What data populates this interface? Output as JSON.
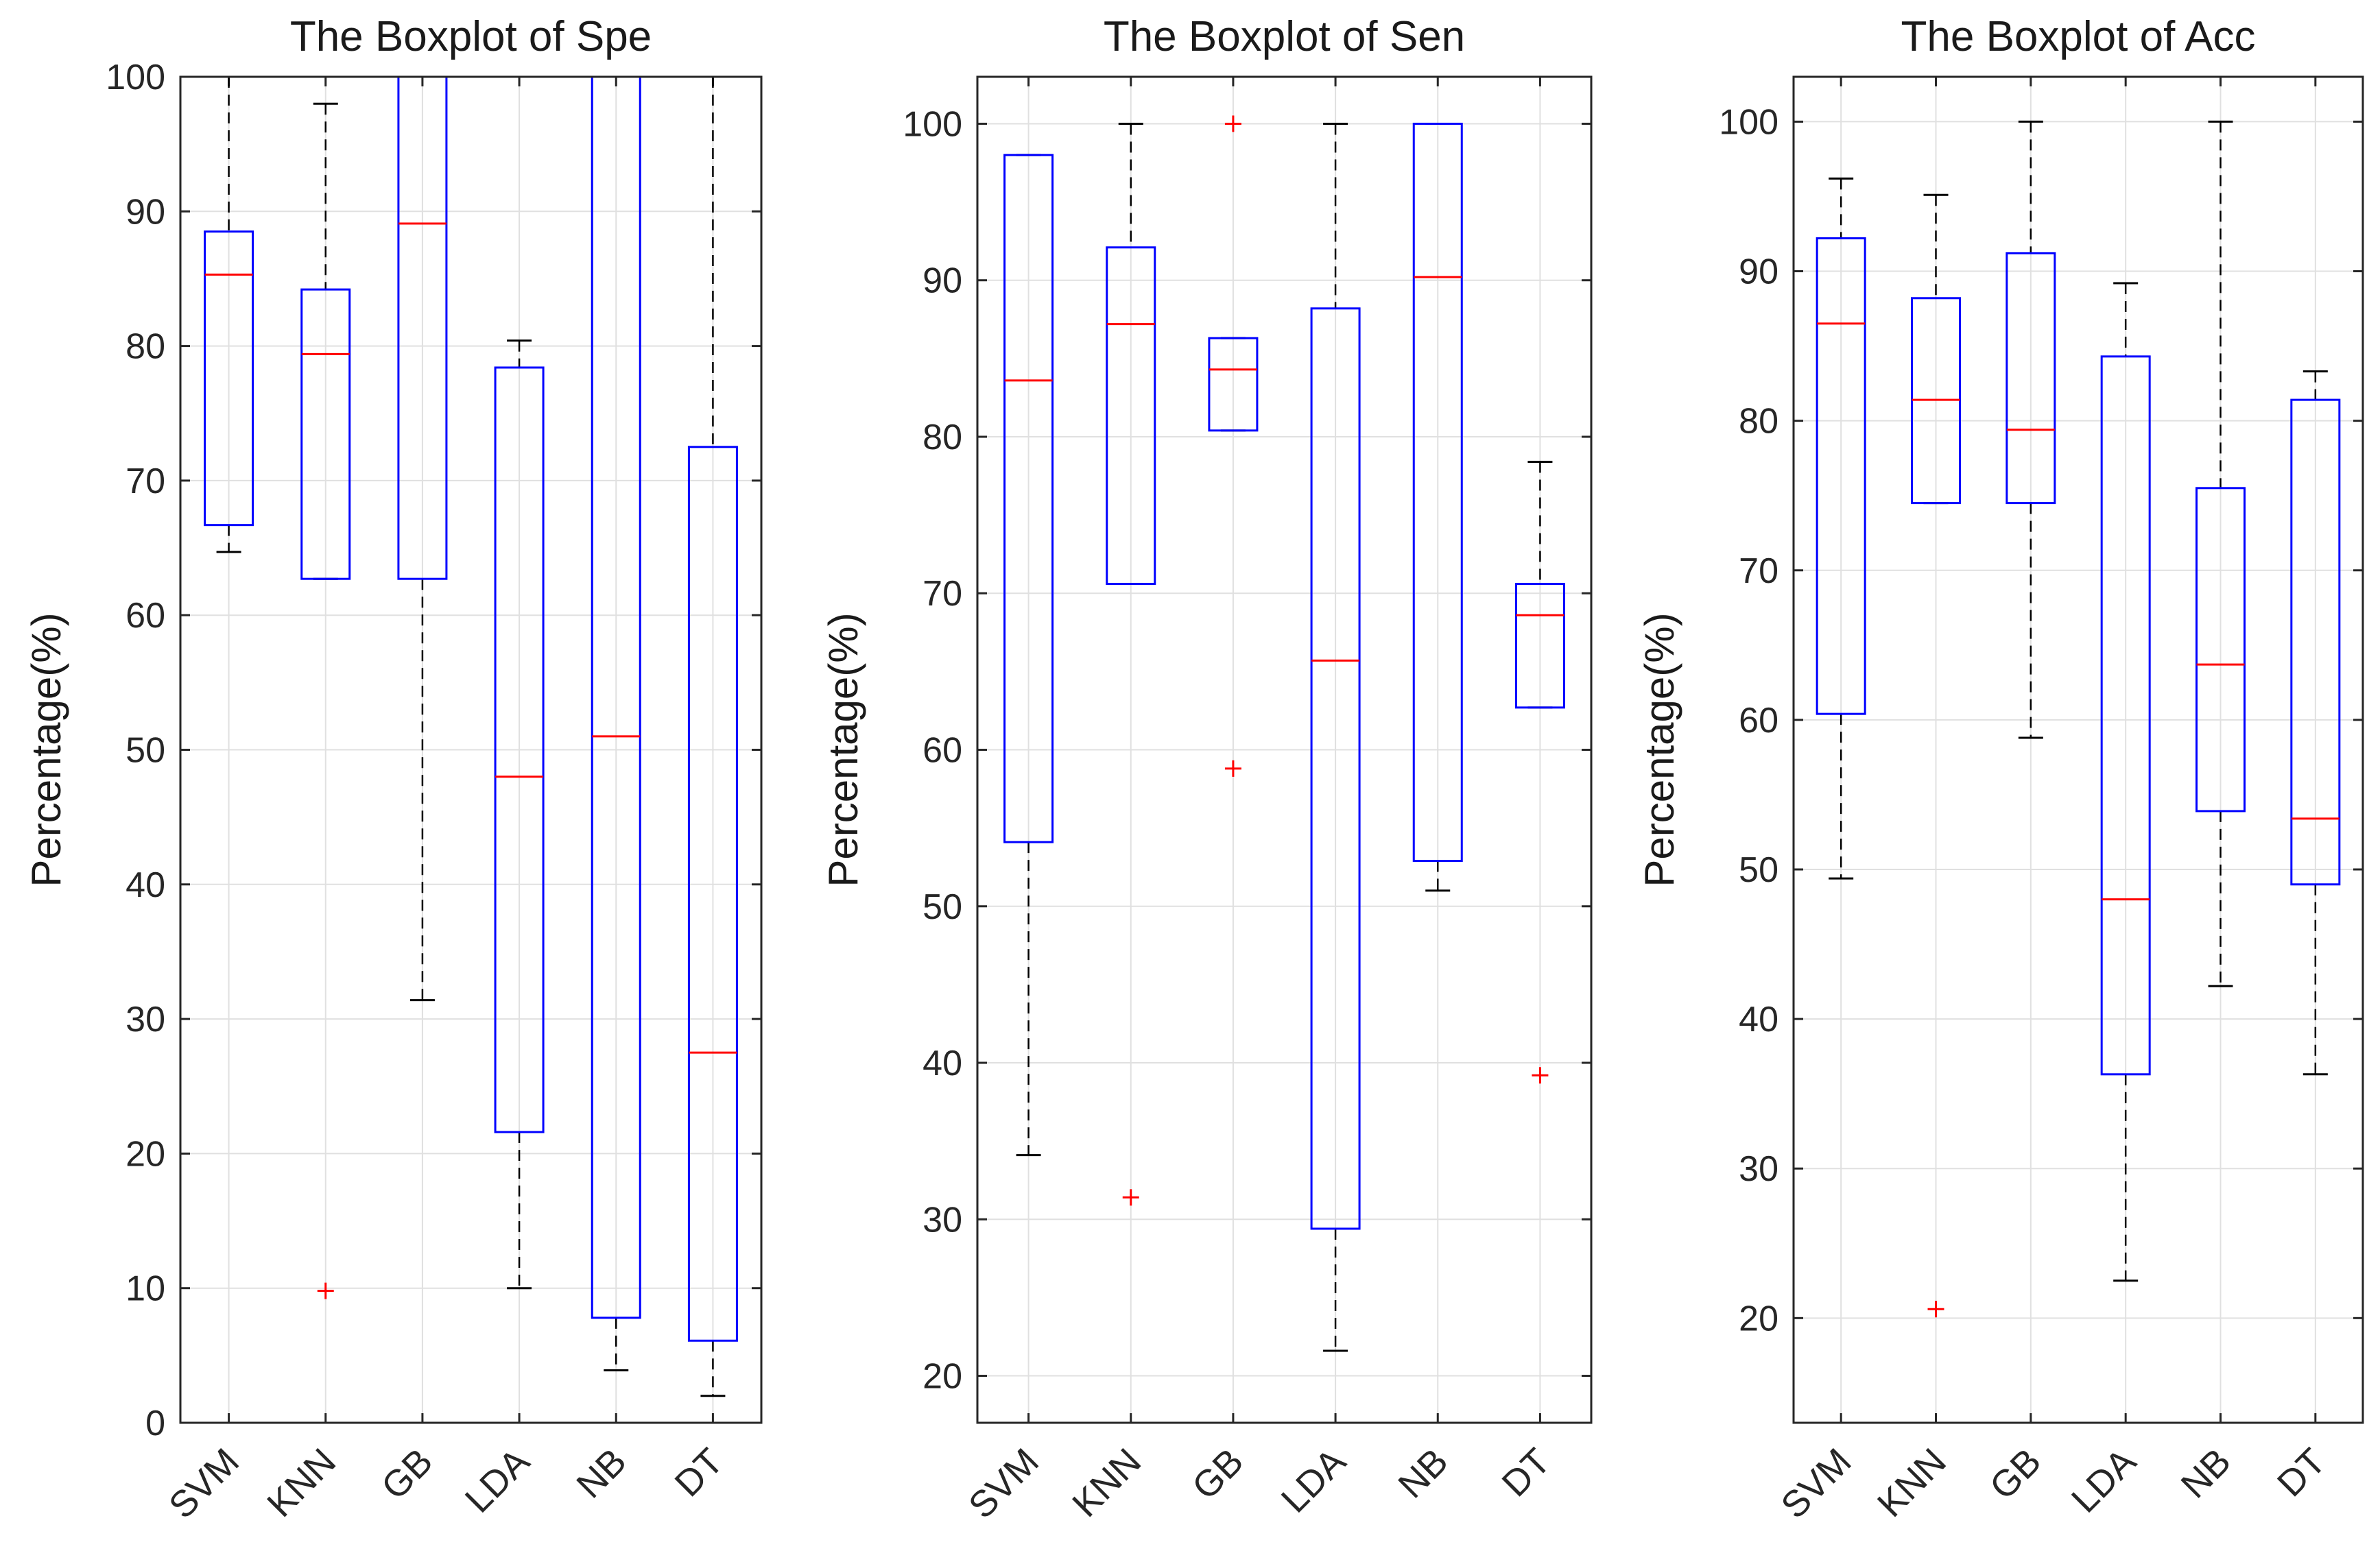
{
  "chart_data": [
    {
      "type": "boxplot",
      "title": "The Boxplot of Spe",
      "ylabel": "Percentage(%)",
      "xlabel": "",
      "ylim": [
        0,
        100
      ],
      "yticks": [
        0,
        10,
        20,
        30,
        40,
        50,
        60,
        70,
        80,
        90,
        100
      ],
      "grid": true,
      "categories": [
        "SVM",
        "KNN",
        "GB",
        "LDA",
        "NB",
        "DT"
      ],
      "boxes": [
        {
          "whisker_low": 64.7,
          "q1": 66.7,
          "median": 85.3,
          "q3": 88.5,
          "whisker_high": 100,
          "outliers": []
        },
        {
          "whisker_low": 62.7,
          "q1": 62.7,
          "median": 79.4,
          "q3": 84.2,
          "whisker_high": 98.0,
          "outliers": [
            9.8
          ]
        },
        {
          "whisker_low": 31.4,
          "q1": 62.7,
          "median": 89.1,
          "q3": 100,
          "whisker_high": 100,
          "outliers": []
        },
        {
          "whisker_low": 10.0,
          "q1": 21.6,
          "median": 48.0,
          "q3": 78.4,
          "whisker_high": 80.4,
          "outliers": []
        },
        {
          "whisker_low": 3.9,
          "q1": 7.8,
          "median": 51.0,
          "q3": 100,
          "whisker_high": 100,
          "outliers": []
        },
        {
          "whisker_low": 2.0,
          "q1": 6.1,
          "median": 27.5,
          "q3": 72.5,
          "whisker_high": 100,
          "outliers": []
        }
      ]
    },
    {
      "type": "boxplot",
      "title": "The Boxplot of Sen",
      "ylabel": "Percentage(%)",
      "xlabel": "",
      "ylim": [
        17,
        103
      ],
      "yticks": [
        20,
        30,
        40,
        50,
        60,
        70,
        80,
        90,
        100
      ],
      "grid": true,
      "categories": [
        "SVM",
        "KNN",
        "GB",
        "LDA",
        "NB",
        "DT"
      ],
      "boxes": [
        {
          "whisker_low": 34.1,
          "q1": 54.1,
          "median": 83.6,
          "q3": 98.0,
          "whisker_high": 98.0,
          "outliers": []
        },
        {
          "whisker_low": 70.6,
          "q1": 70.6,
          "median": 87.2,
          "q3": 92.1,
          "whisker_high": 100,
          "outliers": [
            31.4
          ]
        },
        {
          "whisker_low": 80.4,
          "q1": 80.4,
          "median": 84.3,
          "q3": 86.3,
          "whisker_high": 86.3,
          "outliers": [
            100,
            58.8
          ]
        },
        {
          "whisker_low": 21.6,
          "q1": 29.4,
          "median": 65.7,
          "q3": 88.2,
          "whisker_high": 100,
          "outliers": []
        },
        {
          "whisker_low": 51.0,
          "q1": 52.9,
          "median": 90.2,
          "q3": 100,
          "whisker_high": 100,
          "outliers": []
        },
        {
          "whisker_low": 62.7,
          "q1": 62.7,
          "median": 68.6,
          "q3": 70.6,
          "whisker_high": 78.4,
          "outliers": [
            39.2
          ]
        }
      ]
    },
    {
      "type": "boxplot",
      "title": "The Boxplot of Acc",
      "ylabel": "Percentage(%)",
      "xlabel": "",
      "ylim": [
        13,
        103
      ],
      "yticks": [
        20,
        30,
        40,
        50,
        60,
        70,
        80,
        90,
        100
      ],
      "grid": true,
      "categories": [
        "SVM",
        "KNN",
        "GB",
        "LDA",
        "NB",
        "DT"
      ],
      "boxes": [
        {
          "whisker_low": 49.4,
          "q1": 60.4,
          "median": 86.5,
          "q3": 92.2,
          "whisker_high": 96.2,
          "outliers": []
        },
        {
          "whisker_low": 74.5,
          "q1": 74.5,
          "median": 81.4,
          "q3": 88.2,
          "whisker_high": 95.1,
          "outliers": [
            20.6
          ]
        },
        {
          "whisker_low": 58.8,
          "q1": 74.5,
          "median": 79.4,
          "q3": 91.2,
          "whisker_high": 100,
          "outliers": []
        },
        {
          "whisker_low": 22.5,
          "q1": 36.3,
          "median": 48.0,
          "q3": 84.3,
          "whisker_high": 89.2,
          "outliers": []
        },
        {
          "whisker_low": 42.2,
          "q1": 53.9,
          "median": 63.7,
          "q3": 75.5,
          "whisker_high": 100,
          "outliers": []
        },
        {
          "whisker_low": 36.3,
          "q1": 49.0,
          "median": 53.4,
          "q3": 81.4,
          "whisker_high": 83.3,
          "outliers": []
        }
      ]
    }
  ],
  "colors": {
    "box": "#0000ff",
    "median": "#ff0000",
    "outlier": "#ff0000",
    "whisker": "#000000",
    "grid": "#e0e0e0",
    "axis": "#262626"
  }
}
